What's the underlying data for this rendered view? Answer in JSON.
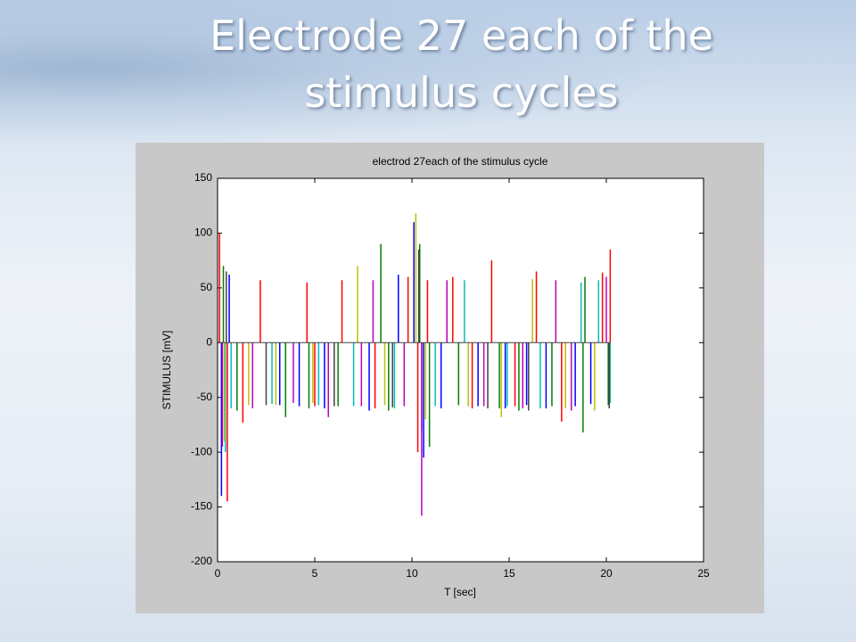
{
  "slide": {
    "title_lines": [
      "Electrode 27 each of the",
      "stimulus cycles"
    ]
  },
  "chart_data": {
    "type": "stem",
    "title": "electrod 27each of the stimulus cycle",
    "x_label": "T [sec]",
    "y_label": "STIMULUS [mV]",
    "xlim": [
      0,
      25
    ],
    "xticks": [
      0,
      5,
      10,
      15,
      20,
      25
    ],
    "ylim": [
      -200,
      150
    ],
    "yticks": [
      -200,
      -150,
      -100,
      -50,
      0,
      50,
      100,
      150
    ],
    "grid": false,
    "baseline_color": "#404040",
    "series": [
      {
        "name": "red",
        "color": "#ff0000",
        "x": [
          0.1,
          0.5,
          1.3,
          2.2,
          4.6,
          5.0,
          6.4,
          8.1,
          9.8,
          10.3,
          10.8,
          12.1,
          13.1,
          14.1,
          15.3,
          16.4,
          17.7,
          19.8,
          20.2
        ],
        "values": [
          100,
          -145,
          -73,
          57,
          55,
          -58,
          57,
          -60,
          60,
          -100,
          57,
          60,
          -60,
          75,
          -58,
          65,
          -72,
          64,
          85
        ]
      },
      {
        "name": "blue",
        "color": "#0000ff",
        "x": [
          0.2,
          0.6,
          3.2,
          4.2,
          5.5,
          7.8,
          9.3,
          10.1,
          10.6,
          11.5,
          13.4,
          14.8,
          15.9,
          16.9,
          18.4,
          19.2
        ],
        "values": [
          -140,
          62,
          -57,
          -58,
          -60,
          -62,
          62,
          110,
          -105,
          -60,
          -58,
          -60,
          -57,
          -60,
          -58,
          -56
        ]
      },
      {
        "name": "green",
        "color": "#008000",
        "x": [
          0.3,
          1.0,
          3.5,
          4.7,
          6.2,
          8.4,
          8.8,
          10.4,
          10.9,
          12.4,
          14.5,
          15.5,
          17.2,
          18.8,
          18.9,
          20.1
        ],
        "values": [
          70,
          -62,
          -68,
          -60,
          -58,
          90,
          -62,
          90,
          -95,
          -57,
          -60,
          -62,
          -58,
          -82,
          60,
          -57
        ]
      },
      {
        "name": "cyan",
        "color": "#00bfbf",
        "x": [
          0.4,
          0.7,
          2.8,
          5.2,
          7.0,
          9.1,
          10.5,
          11.2,
          12.7,
          14.9,
          16.6,
          18.7,
          19.6,
          20.2
        ],
        "values": [
          -100,
          -60,
          -56,
          -57,
          -58,
          -60,
          -80,
          -58,
          57,
          -58,
          -60,
          55,
          57,
          -55
        ]
      },
      {
        "name": "magenta",
        "color": "#bf00bf",
        "x": [
          0.25,
          1.8,
          3.9,
          5.7,
          7.4,
          8.0,
          9.6,
          10.5,
          11.8,
          13.7,
          15.7,
          17.4,
          18.2,
          20.0
        ],
        "values": [
          -95,
          -60,
          -55,
          -68,
          -58,
          57,
          -58,
          -158,
          57,
          -58,
          -60,
          57,
          -62,
          60
        ]
      },
      {
        "name": "yellow",
        "color": "#bfbf00",
        "x": [
          0.35,
          1.6,
          3.0,
          4.9,
          7.2,
          8.6,
          10.2,
          10.7,
          12.9,
          14.6,
          16.2,
          17.9,
          19.4
        ],
        "values": [
          -90,
          -57,
          -57,
          -55,
          70,
          -57,
          118,
          -70,
          -58,
          -68,
          58,
          -60,
          -62
        ]
      },
      {
        "name": "dark",
        "color": "#404040",
        "x": [
          0.45,
          2.5,
          6.0,
          9.0,
          10.35,
          13.9,
          16.0,
          20.15
        ],
        "values": [
          65,
          -57,
          -58,
          -59,
          85,
          -60,
          -62,
          -60
        ]
      }
    ]
  }
}
